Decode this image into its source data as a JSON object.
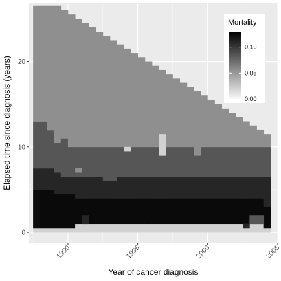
{
  "chart_data": {
    "type": "heatmap",
    "xlabel": "Year of cancer diagnosis",
    "ylabel": "Elapsed time since diagnosis (years)",
    "xlim": [
      1987.2,
      2005.0
    ],
    "ylim": [
      -1.2,
      26.8
    ],
    "x_ticks": [
      "1990",
      "1995",
      "2000",
      "2005"
    ],
    "x_tick_values": [
      1990,
      1995,
      2000,
      2005
    ],
    "y_ticks": [
      "0",
      "10",
      "20"
    ],
    "y_tick_values": [
      0,
      10,
      20
    ],
    "grid": true,
    "legend": {
      "title": "Mortality",
      "placement": "top-right",
      "range": [
        0.0,
        0.13
      ],
      "ticks": [
        "0.00",
        "0.05",
        "0.10"
      ],
      "tick_values": [
        0.0,
        0.05,
        0.1
      ],
      "low_color": "#f8f8f8",
      "high_color": "#000000"
    },
    "x_start": 1987.5,
    "x_step": 0.5,
    "top": [
      26.5,
      26.5,
      26.5,
      26.5,
      26.0,
      25.5,
      25.0,
      24.5,
      24.0,
      23.5,
      23.0,
      22.5,
      22.0,
      21.5,
      21.0,
      20.5,
      20.0,
      19.5,
      19.0,
      18.5,
      18.0,
      17.5,
      17.0,
      16.5,
      16.0,
      15.5,
      15.0,
      14.5,
      14.0,
      13.5,
      13.0,
      12.5,
      12.0,
      11.5
    ],
    "b4": [
      13.0,
      13.0,
      12.0,
      10.5,
      11.0,
      10.0,
      10.0,
      10.0,
      10.0,
      10.0,
      10.0,
      10.0,
      10.0,
      10.0,
      10.0,
      10.0,
      10.0,
      10.0,
      10.0,
      10.0,
      10.0,
      10.0,
      10.0,
      10.0,
      10.0,
      10.0,
      10.0,
      10.0,
      10.0,
      10.0,
      10.0,
      10.0,
      10.0,
      10.0
    ],
    "b3": [
      7.5,
      7.5,
      7.5,
      7.0,
      6.5,
      6.5,
      6.5,
      6.5,
      6.5,
      6.5,
      6.5,
      6.5,
      6.5,
      6.5,
      6.5,
      6.5,
      6.5,
      6.5,
      6.5,
      6.5,
      6.5,
      6.5,
      6.5,
      6.5,
      6.5,
      6.5,
      6.5,
      6.5,
      6.5,
      6.5,
      6.5,
      6.5,
      6.5,
      6.5
    ],
    "b2": [
      5.0,
      5.0,
      5.0,
      4.5,
      4.5,
      4.5,
      4.0,
      4.0,
      4.0,
      4.0,
      4.0,
      4.0,
      4.0,
      4.0,
      4.0,
      4.0,
      4.0,
      4.0,
      4.0,
      4.0,
      4.0,
      4.0,
      4.0,
      4.0,
      4.0,
      4.0,
      4.0,
      4.0,
      4.0,
      4.0,
      4.0,
      4.0,
      4.0,
      3.0
    ],
    "b1": [
      0.5,
      0.5,
      0.5,
      0.5,
      0.5,
      0.5,
      1.0,
      1.0,
      1.0,
      1.0,
      1.0,
      1.0,
      1.0,
      1.0,
      1.0,
      1.0,
      1.0,
      1.0,
      1.0,
      1.0,
      1.0,
      1.0,
      1.0,
      1.0,
      1.0,
      1.0,
      1.0,
      1.0,
      1.0,
      1.0,
      1.0,
      1.0,
      1.0,
      0.5
    ],
    "band_values": [
      0.02,
      0.055,
      0.085,
      0.11,
      0.125
    ],
    "blobs": [
      {
        "x0": 1994.0,
        "x1": 1994.5,
        "y0": 9.5,
        "y1": 10.0,
        "v": 0.02
      },
      {
        "x0": 1996.5,
        "x1": 1997.0,
        "y0": 9.0,
        "y1": 11.5,
        "v": 0.02
      },
      {
        "x0": 1990.5,
        "x1": 1991.0,
        "y0": 7.0,
        "y1": 7.5,
        "v": 0.055
      },
      {
        "x0": 1999.0,
        "x1": 1999.5,
        "y0": 9.0,
        "y1": 10.0,
        "v": 0.055
      },
      {
        "x0": 1992.5,
        "x1": 1993.5,
        "y0": 6.0,
        "y1": 6.5,
        "v": 0.085
      },
      {
        "x0": 1991.0,
        "x1": 1991.5,
        "y0": 1.0,
        "y1": 2.0,
        "v": 0.11
      },
      {
        "x0": 2003.0,
        "x1": 2004.0,
        "y0": 1.0,
        "y1": 2.0,
        "v": 0.085
      },
      {
        "x0": 2002.5,
        "x1": 2003.0,
        "y0": 0.5,
        "y1": 1.0,
        "v": 0.11
      }
    ]
  }
}
